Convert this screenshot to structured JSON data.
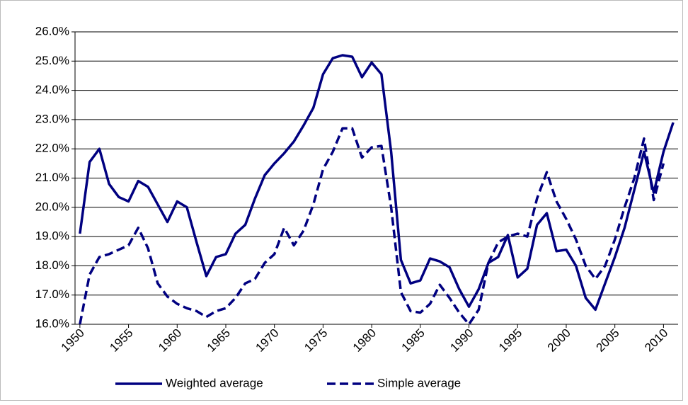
{
  "chart_data": {
    "type": "line",
    "x": [
      1950,
      1951,
      1952,
      1953,
      1954,
      1955,
      1956,
      1957,
      1958,
      1959,
      1960,
      1961,
      1962,
      1963,
      1964,
      1965,
      1966,
      1967,
      1968,
      1969,
      1970,
      1971,
      1972,
      1973,
      1974,
      1975,
      1976,
      1977,
      1978,
      1979,
      1980,
      1981,
      1982,
      1983,
      1984,
      1985,
      1986,
      1987,
      1988,
      1989,
      1990,
      1991,
      1992,
      1993,
      1994,
      1995,
      1996,
      1997,
      1998,
      1999,
      2000,
      2001,
      2002,
      2003,
      2004,
      2005,
      2006,
      2007,
      2008,
      2009,
      2010,
      2011
    ],
    "series": [
      {
        "name": "Weighted average",
        "color": "#000080",
        "dashed": false,
        "values": [
          19.1,
          21.55,
          22.0,
          20.8,
          20.35,
          20.2,
          20.9,
          20.7,
          20.1,
          19.5,
          20.2,
          20.0,
          18.8,
          17.65,
          18.3,
          18.4,
          19.1,
          19.4,
          20.3,
          21.1,
          21.5,
          21.85,
          22.25,
          22.8,
          23.4,
          24.55,
          25.1,
          25.2,
          25.15,
          24.45,
          24.95,
          24.55,
          21.9,
          18.2,
          17.4,
          17.5,
          18.25,
          18.15,
          17.95,
          17.2,
          16.6,
          17.2,
          18.1,
          18.3,
          19.05,
          17.6,
          17.9,
          19.4,
          19.8,
          18.5,
          18.55,
          18.0,
          16.9,
          16.5,
          17.4,
          18.3,
          19.3,
          20.6,
          21.9,
          20.5,
          21.9,
          22.9
        ]
      },
      {
        "name": "Simple average",
        "color": "#000080",
        "dashed": true,
        "values": [
          16.0,
          17.7,
          18.3,
          18.4,
          18.55,
          18.7,
          19.3,
          18.6,
          17.4,
          16.95,
          16.7,
          16.55,
          16.45,
          16.25,
          16.45,
          16.55,
          16.9,
          17.4,
          17.55,
          18.1,
          18.4,
          19.3,
          18.7,
          19.2,
          20.1,
          21.3,
          21.9,
          22.7,
          22.7,
          21.7,
          22.05,
          22.1,
          20.0,
          17.1,
          16.45,
          16.4,
          16.7,
          17.35,
          16.9,
          16.4,
          16.0,
          16.5,
          18.1,
          18.8,
          19.0,
          19.1,
          19.0,
          20.3,
          21.2,
          20.2,
          19.6,
          18.9,
          18.0,
          17.55,
          18.0,
          18.9,
          20.0,
          21.0,
          22.35,
          20.25,
          21.5,
          null
        ]
      }
    ],
    "xlim": [
      1949.5,
      2011.5
    ],
    "xticks": [
      1950,
      1955,
      1960,
      1965,
      1970,
      1975,
      1980,
      1985,
      1990,
      1995,
      2000,
      2005,
      2010
    ],
    "ylim": [
      16,
      26
    ],
    "yticks": [
      {
        "value": 16,
        "label": "16.0%"
      },
      {
        "value": 17,
        "label": "17.0%"
      },
      {
        "value": 18,
        "label": "18.0%"
      },
      {
        "value": 19,
        "label": "19.0%"
      },
      {
        "value": 20,
        "label": "20.0%"
      },
      {
        "value": 21,
        "label": "21.0%"
      },
      {
        "value": 22,
        "label": "22.0%"
      },
      {
        "value": 23,
        "label": "23.0%"
      },
      {
        "value": 24,
        "label": "24.0%"
      },
      {
        "value": 25,
        "label": "25.0%"
      },
      {
        "value": 26,
        "label": "26.0%"
      }
    ],
    "grid": true,
    "legend": "bottom"
  }
}
